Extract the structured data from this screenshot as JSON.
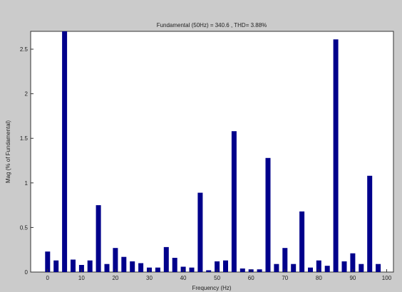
{
  "chart_data": {
    "type": "bar",
    "title": "Fundamental (50Hz) = 340.6 , THD= 3.88%",
    "xlabel": "Frequency (Hz)",
    "ylabel": "Mag (% of Fundamental)",
    "xlim": [
      -5,
      102
    ],
    "ylim": [
      0,
      2.7
    ],
    "xticks": [
      0,
      10,
      20,
      30,
      40,
      50,
      60,
      70,
      80,
      90,
      100
    ],
    "yticks": [
      0,
      0.5,
      1,
      1.5,
      2,
      2.5
    ],
    "ytick_labels": [
      "0",
      "0.5",
      "1",
      "1.5",
      "2",
      "2.5"
    ],
    "bar_color": "#00008b",
    "x": [
      0,
      2.5,
      5,
      7.5,
      10,
      12.5,
      15,
      17.5,
      20,
      22.5,
      25,
      27.5,
      30,
      32.5,
      35,
      37.5,
      40,
      42.5,
      45,
      47.5,
      50,
      52.5,
      55,
      57.5,
      60,
      62.5,
      65,
      67.5,
      70,
      72.5,
      75,
      77.5,
      80,
      82.5,
      85,
      87.5,
      90,
      92.5,
      95,
      97.5
    ],
    "values": [
      0.23,
      0.13,
      2.95,
      0.14,
      0.08,
      0.13,
      0.75,
      0.09,
      0.27,
      0.17,
      0.12,
      0.1,
      0.05,
      0.05,
      0.28,
      0.16,
      0.06,
      0.05,
      0.89,
      0.02,
      0.12,
      0.13,
      1.58,
      0.04,
      0.03,
      0.03,
      1.28,
      0.09,
      0.27,
      0.09,
      0.68,
      0.05,
      0.13,
      0.07,
      2.61,
      0.12,
      0.21,
      0.09,
      1.08,
      0.09
    ],
    "grid": false
  }
}
